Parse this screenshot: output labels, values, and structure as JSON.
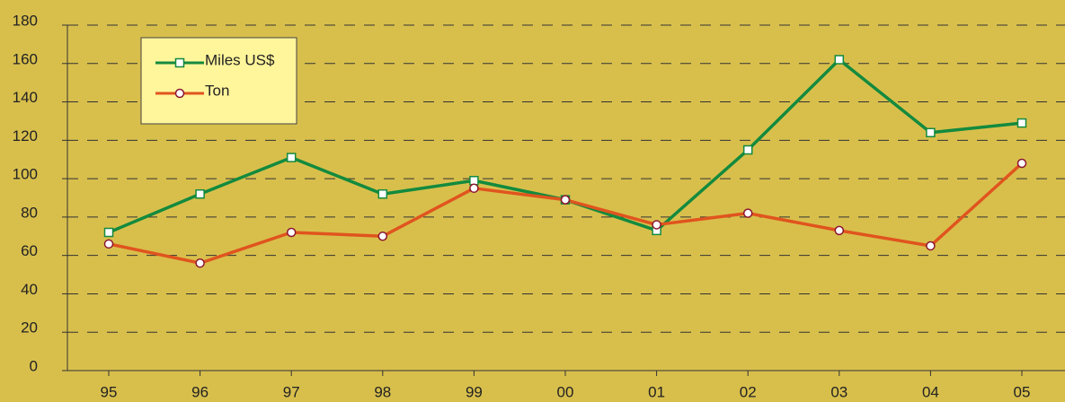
{
  "chart_data": {
    "type": "line",
    "categories": [
      "95",
      "96",
      "97",
      "98",
      "99",
      "00",
      "01",
      "02",
      "03",
      "04",
      "05"
    ],
    "series": [
      {
        "name": "Miles US$",
        "color": "#138a3e",
        "marker": "square",
        "values": [
          72,
          92,
          111,
          92,
          99,
          89,
          73,
          115,
          162,
          124,
          129
        ]
      },
      {
        "name": "Ton",
        "color": "#e0541e",
        "marker": "circle",
        "values": [
          66,
          56,
          72,
          70,
          95,
          89,
          76,
          82,
          73,
          65,
          108
        ]
      }
    ],
    "ylim": [
      0,
      180
    ],
    "yticks": [
      0,
      20,
      40,
      60,
      80,
      100,
      120,
      140,
      160,
      180
    ],
    "grid": true,
    "legend": "upper left"
  }
}
